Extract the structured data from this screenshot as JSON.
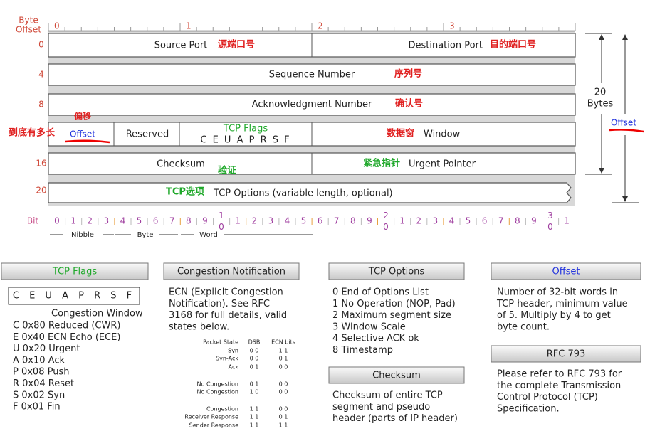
{
  "header_diagram": {
    "byte_offset": [
      "Byte",
      "Offset"
    ],
    "byte_ticks": [
      "0",
      "1",
      "2",
      "3"
    ],
    "row_offsets": [
      "0",
      "4",
      "8",
      "16",
      "20"
    ],
    "source_port": "Source Port",
    "source_port_cn": "源端口号",
    "destination_port": "Destination Port",
    "destination_port_cn": "目的端口号",
    "sequence_number": "Sequence Number",
    "sequence_number_cn": "序列号",
    "ack_number": "Acknowledgment Number",
    "ack_number_cn": "确认号",
    "offset": "Offset",
    "offset_cn": "偏移",
    "offset_note": "到底有多长",
    "reserved": "Reserved",
    "tcp_flags": "TCP Flags",
    "flag_letters": "C E U A P R S F",
    "window": "Window",
    "window_cn": "数据窗",
    "checksum": "Checksum",
    "checksum_cn": "验证",
    "urgent_pointer": "Urgent Pointer",
    "urgent_pointer_cn": "紧急指针",
    "options": "TCP Options (variable length, optional)",
    "options_cn": "TCP选项",
    "size": [
      "20",
      "Bytes"
    ],
    "offset_side": "Offset",
    "bit_label": "Bit",
    "bit_ticks": [
      "0",
      "1",
      "2",
      "3",
      "4",
      "5",
      "6",
      "7",
      "8",
      "9",
      "10",
      "1",
      "2",
      "3",
      "4",
      "5",
      "6",
      "7",
      "8",
      "9",
      "20",
      "1",
      "2",
      "3",
      "4",
      "5",
      "6",
      "7",
      "8",
      "9",
      "30",
      "1"
    ],
    "spans": [
      "Nibble",
      "Byte",
      "Word"
    ]
  },
  "legend_boxes": {
    "tcp_flags": {
      "title": "TCP Flags",
      "letters": "C E U A P R S F",
      "subtitle": "Congestion Window",
      "items": [
        "C 0x80 Reduced (CWR)",
        "E 0x40 ECN Echo (ECE)",
        "U 0x20 Urgent",
        "A 0x10 Ack",
        "P 0x08 Push",
        "R 0x04 Reset",
        "S 0x02 Syn",
        "F 0x01 Fin"
      ]
    },
    "congestion_notification": {
      "title": "Congestion Notification",
      "text": [
        "ECN (Explicit Congestion",
        "Notification).  See RFC",
        "3168 for full details, valid",
        "states below."
      ],
      "table": {
        "header": [
          "Packet State",
          "DSB",
          "ECN bits"
        ],
        "rows": [
          [
            "Syn",
            "0 0",
            "1 1"
          ],
          [
            "Syn-Ack",
            "0 0",
            "0 1"
          ],
          [
            "Ack",
            "0 1",
            "0 0"
          ],
          [
            "No Congestion",
            "0 1",
            "0 0"
          ],
          [
            "No Congestion",
            "1 0",
            "0 0"
          ],
          [
            "Congestion",
            "1 1",
            "0 0"
          ],
          [
            "Receiver Response",
            "1 1",
            "0 1"
          ],
          [
            "Sender Response",
            "1 1",
            "1 1"
          ]
        ]
      }
    },
    "tcp_options": {
      "title": "TCP Options",
      "items": [
        "0 End of Options List",
        "1 No Operation (NOP, Pad)",
        "2 Maximum segment size",
        "3 Window Scale",
        "4 Selective ACK ok",
        "8 Timestamp"
      ]
    },
    "checksum": {
      "title": "Checksum",
      "text": [
        "Checksum of entire TCP",
        "segment and pseudo",
        "header (parts of IP header)"
      ]
    },
    "offset": {
      "title": "Offset",
      "text": [
        "Number of 32-bit words in",
        "TCP header, minimum value",
        "of 5.  Multiply by 4 to get",
        "byte count."
      ]
    },
    "rfc": {
      "title": "RFC 793",
      "text": [
        "Please refer to RFC 793 for",
        "the complete Transmission",
        "Control Protocol (TCP)",
        "Specification."
      ]
    }
  }
}
